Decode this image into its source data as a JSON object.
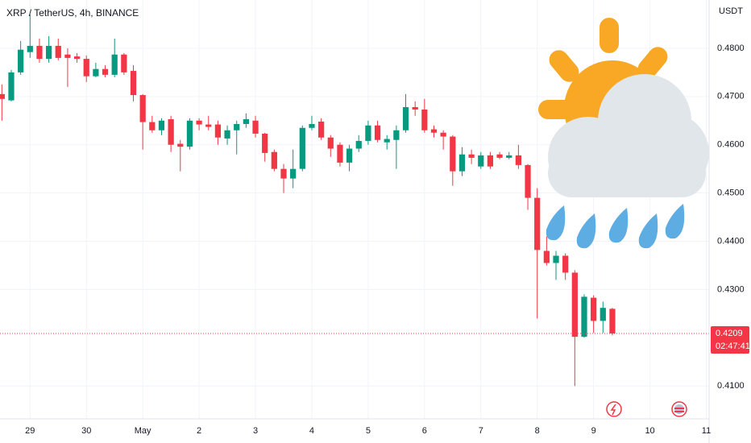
{
  "chart_data": {
    "type": "candlestick",
    "title": "XRP / TetherUS, 4h, BINANCE",
    "axis_label": "USDT",
    "up_color": "#089981",
    "down_color": "#f23645",
    "grid": true,
    "ylim": [
      0.4032,
      0.49
    ],
    "yticks": [
      {
        "value": 0.41,
        "label": "0.4100"
      },
      {
        "value": 0.43,
        "label": "0.4300"
      },
      {
        "value": 0.44,
        "label": "0.4400"
      },
      {
        "value": 0.45,
        "label": "0.4500"
      },
      {
        "value": 0.46,
        "label": "0.4600"
      },
      {
        "value": 0.47,
        "label": "0.4700"
      },
      {
        "value": 0.48,
        "label": "0.4800"
      }
    ],
    "xlim": [
      -0.2,
      75.3
    ],
    "xticks": [
      {
        "value": 3,
        "label": "29"
      },
      {
        "value": 9,
        "label": "30"
      },
      {
        "value": 15,
        "label": "May"
      },
      {
        "value": 21,
        "label": "2"
      },
      {
        "value": 27,
        "label": "3"
      },
      {
        "value": 33,
        "label": "4"
      },
      {
        "value": 39,
        "label": "5"
      },
      {
        "value": 45,
        "label": "6"
      },
      {
        "value": 51,
        "label": "7"
      },
      {
        "value": 57,
        "label": "8"
      },
      {
        "value": 63,
        "label": "9"
      },
      {
        "value": 69,
        "label": "10"
      },
      {
        "value": 75,
        "label": "11"
      }
    ],
    "last_price": {
      "value": 0.4209,
      "label": "0.4209"
    },
    "countdown": "02:47:41",
    "candles": [
      {
        "o": 0.4705,
        "h": 0.4725,
        "l": 0.465,
        "c": 0.4695
      },
      {
        "o": 0.4692,
        "h": 0.4755,
        "l": 0.469,
        "c": 0.475
      },
      {
        "o": 0.475,
        "h": 0.4815,
        "l": 0.4745,
        "c": 0.4797
      },
      {
        "o": 0.4792,
        "h": 0.487,
        "l": 0.478,
        "c": 0.4805
      },
      {
        "o": 0.4805,
        "h": 0.482,
        "l": 0.477,
        "c": 0.4778
      },
      {
        "o": 0.4778,
        "h": 0.4825,
        "l": 0.477,
        "c": 0.4805
      },
      {
        "o": 0.4805,
        "h": 0.482,
        "l": 0.4775,
        "c": 0.478
      },
      {
        "o": 0.4787,
        "h": 0.48,
        "l": 0.472,
        "c": 0.478
      },
      {
        "o": 0.4783,
        "h": 0.479,
        "l": 0.477,
        "c": 0.4778
      },
      {
        "o": 0.4778,
        "h": 0.4785,
        "l": 0.473,
        "c": 0.4742
      },
      {
        "o": 0.4742,
        "h": 0.477,
        "l": 0.474,
        "c": 0.4757
      },
      {
        "o": 0.4757,
        "h": 0.4765,
        "l": 0.474,
        "c": 0.4745
      },
      {
        "o": 0.4745,
        "h": 0.482,
        "l": 0.474,
        "c": 0.4787
      },
      {
        "o": 0.4787,
        "h": 0.479,
        "l": 0.4745,
        "c": 0.475
      },
      {
        "o": 0.4753,
        "h": 0.4765,
        "l": 0.469,
        "c": 0.4703
      },
      {
        "o": 0.4703,
        "h": 0.4705,
        "l": 0.459,
        "c": 0.4647
      },
      {
        "o": 0.4647,
        "h": 0.466,
        "l": 0.4625,
        "c": 0.463
      },
      {
        "o": 0.463,
        "h": 0.4655,
        "l": 0.462,
        "c": 0.465
      },
      {
        "o": 0.4653,
        "h": 0.466,
        "l": 0.4585,
        "c": 0.46
      },
      {
        "o": 0.4602,
        "h": 0.461,
        "l": 0.4545,
        "c": 0.4596
      },
      {
        "o": 0.4596,
        "h": 0.4655,
        "l": 0.459,
        "c": 0.465
      },
      {
        "o": 0.465,
        "h": 0.4655,
        "l": 0.463,
        "c": 0.4642
      },
      {
        "o": 0.4642,
        "h": 0.466,
        "l": 0.463,
        "c": 0.4637
      },
      {
        "o": 0.4642,
        "h": 0.465,
        "l": 0.46,
        "c": 0.4615
      },
      {
        "o": 0.4613,
        "h": 0.464,
        "l": 0.46,
        "c": 0.463
      },
      {
        "o": 0.463,
        "h": 0.465,
        "l": 0.458,
        "c": 0.4643
      },
      {
        "o": 0.4643,
        "h": 0.4665,
        "l": 0.4635,
        "c": 0.4653
      },
      {
        "o": 0.465,
        "h": 0.466,
        "l": 0.4615,
        "c": 0.4623
      },
      {
        "o": 0.4623,
        "h": 0.4625,
        "l": 0.4565,
        "c": 0.4583
      },
      {
        "o": 0.4585,
        "h": 0.459,
        "l": 0.4545,
        "c": 0.455
      },
      {
        "o": 0.455,
        "h": 0.456,
        "l": 0.45,
        "c": 0.453
      },
      {
        "o": 0.453,
        "h": 0.459,
        "l": 0.451,
        "c": 0.455
      },
      {
        "o": 0.455,
        "h": 0.464,
        "l": 0.4545,
        "c": 0.4635
      },
      {
        "o": 0.4635,
        "h": 0.466,
        "l": 0.463,
        "c": 0.4643
      },
      {
        "o": 0.4648,
        "h": 0.4655,
        "l": 0.461,
        "c": 0.4615
      },
      {
        "o": 0.4615,
        "h": 0.462,
        "l": 0.4575,
        "c": 0.4592
      },
      {
        "o": 0.46,
        "h": 0.4605,
        "l": 0.4555,
        "c": 0.4563
      },
      {
        "o": 0.4563,
        "h": 0.46,
        "l": 0.4545,
        "c": 0.4592
      },
      {
        "o": 0.4592,
        "h": 0.462,
        "l": 0.4585,
        "c": 0.4608
      },
      {
        "o": 0.4608,
        "h": 0.465,
        "l": 0.46,
        "c": 0.464
      },
      {
        "o": 0.464,
        "h": 0.465,
        "l": 0.4605,
        "c": 0.461
      },
      {
        "o": 0.4605,
        "h": 0.462,
        "l": 0.459,
        "c": 0.4612
      },
      {
        "o": 0.461,
        "h": 0.464,
        "l": 0.455,
        "c": 0.463
      },
      {
        "o": 0.463,
        "h": 0.4705,
        "l": 0.4625,
        "c": 0.4678
      },
      {
        "o": 0.4678,
        "h": 0.469,
        "l": 0.466,
        "c": 0.4673
      },
      {
        "o": 0.4673,
        "h": 0.4695,
        "l": 0.4625,
        "c": 0.463
      },
      {
        "o": 0.4632,
        "h": 0.464,
        "l": 0.4615,
        "c": 0.4625
      },
      {
        "o": 0.4625,
        "h": 0.463,
        "l": 0.459,
        "c": 0.4617
      },
      {
        "o": 0.4617,
        "h": 0.462,
        "l": 0.4515,
        "c": 0.4545
      },
      {
        "o": 0.4545,
        "h": 0.4595,
        "l": 0.4535,
        "c": 0.458
      },
      {
        "o": 0.458,
        "h": 0.459,
        "l": 0.456,
        "c": 0.4573
      },
      {
        "o": 0.4555,
        "h": 0.4585,
        "l": 0.455,
        "c": 0.4578
      },
      {
        "o": 0.4578,
        "h": 0.4585,
        "l": 0.455,
        "c": 0.4555
      },
      {
        "o": 0.458,
        "h": 0.4585,
        "l": 0.457,
        "c": 0.4573
      },
      {
        "o": 0.4573,
        "h": 0.4585,
        "l": 0.457,
        "c": 0.4578
      },
      {
        "o": 0.4578,
        "h": 0.46,
        "l": 0.455,
        "c": 0.4558
      },
      {
        "o": 0.4558,
        "h": 0.456,
        "l": 0.4465,
        "c": 0.449
      },
      {
        "o": 0.449,
        "h": 0.451,
        "l": 0.424,
        "c": 0.4382
      },
      {
        "o": 0.438,
        "h": 0.441,
        "l": 0.435,
        "c": 0.4355
      },
      {
        "o": 0.4355,
        "h": 0.438,
        "l": 0.432,
        "c": 0.437
      },
      {
        "o": 0.437,
        "h": 0.4375,
        "l": 0.432,
        "c": 0.4335
      },
      {
        "o": 0.4335,
        "h": 0.434,
        "l": 0.41,
        "c": 0.4202
      },
      {
        "o": 0.4202,
        "h": 0.429,
        "l": 0.42,
        "c": 0.4285
      },
      {
        "o": 0.4283,
        "h": 0.4288,
        "l": 0.421,
        "c": 0.4235
      },
      {
        "o": 0.4235,
        "h": 0.4275,
        "l": 0.421,
        "c": 0.4262
      },
      {
        "o": 0.426,
        "h": 0.4262,
        "l": 0.4205,
        "c": 0.4209
      }
    ]
  }
}
